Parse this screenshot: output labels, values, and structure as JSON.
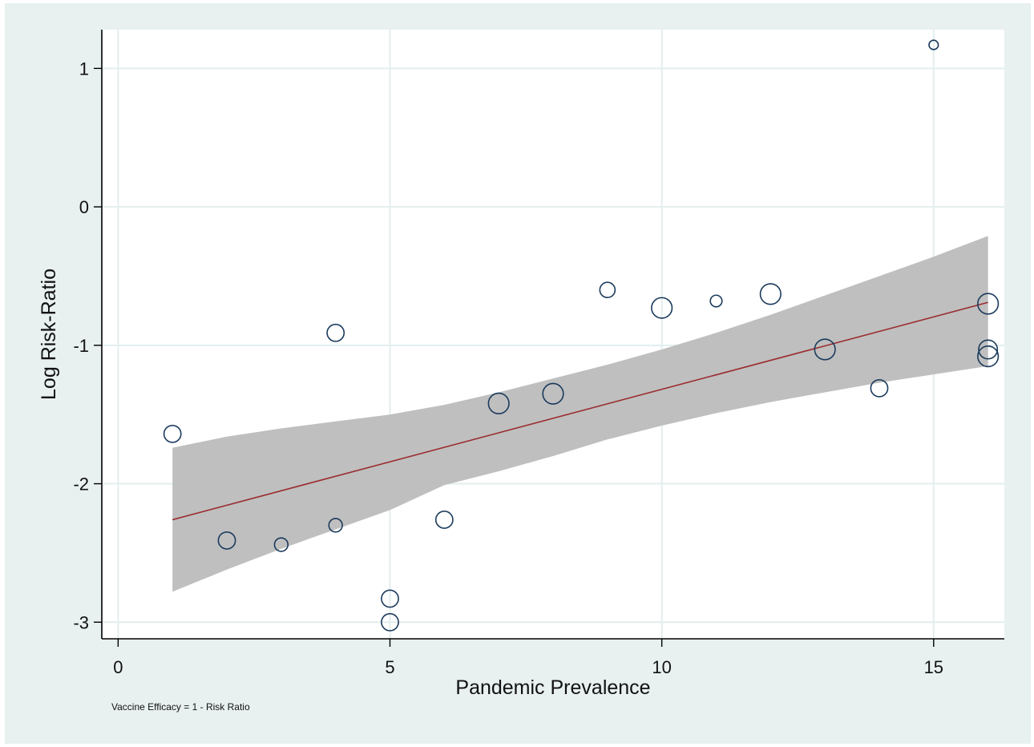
{
  "chart_data": {
    "type": "scatter",
    "title": "",
    "xlabel": "Pandemic Prevalence",
    "ylabel": "Log Risk-Ratio",
    "note": "Vaccine Efficacy = 1 - Risk Ratio",
    "xlim": [
      -0.3,
      16.3
    ],
    "ylim": [
      -3.12,
      1.28
    ],
    "x_ticks": [
      0,
      5,
      10,
      15
    ],
    "y_ticks": [
      1,
      0,
      -1,
      -2,
      -3
    ],
    "x_tick_labels": [
      "0",
      "5",
      "10",
      "15"
    ],
    "y_tick_labels": [
      "1",
      "0",
      "-1",
      "-2",
      "-3"
    ],
    "grid": true,
    "legend": "none",
    "colors": {
      "outer_background": "#e8f0f0",
      "plot_background": "#ffffff",
      "grid": "#e3eeee",
      "marker": "#1a3a5c",
      "fit_line": "#9b2d30",
      "confidence_band": "#bfbfbf"
    },
    "points": [
      {
        "x": 1,
        "y": -1.64,
        "weight": 3
      },
      {
        "x": 2,
        "y": -2.41,
        "weight": 3
      },
      {
        "x": 3,
        "y": -2.44,
        "weight": 2
      },
      {
        "x": 4,
        "y": -0.91,
        "weight": 3
      },
      {
        "x": 4,
        "y": -2.3,
        "weight": 2
      },
      {
        "x": 5,
        "y": -2.83,
        "weight": 3
      },
      {
        "x": 5,
        "y": -3.0,
        "weight": 3
      },
      {
        "x": 6,
        "y": -2.26,
        "weight": 3
      },
      {
        "x": 7,
        "y": -1.42,
        "weight": 4
      },
      {
        "x": 8,
        "y": -1.35,
        "weight": 4
      },
      {
        "x": 9,
        "y": -0.6,
        "weight": 2.5
      },
      {
        "x": 10,
        "y": -0.73,
        "weight": 4
      },
      {
        "x": 11,
        "y": -0.68,
        "weight": 1.5
      },
      {
        "x": 12,
        "y": -0.63,
        "weight": 4
      },
      {
        "x": 13,
        "y": -1.03,
        "weight": 4
      },
      {
        "x": 14,
        "y": -1.31,
        "weight": 3
      },
      {
        "x": 15,
        "y": 1.17,
        "weight": 0.8
      },
      {
        "x": 16,
        "y": -0.7,
        "weight": 4
      },
      {
        "x": 16,
        "y": -1.03,
        "weight": 3.5
      },
      {
        "x": 16,
        "y": -1.08,
        "weight": 4
      }
    ],
    "fit_line": {
      "x": [
        1,
        16
      ],
      "y": [
        -2.26,
        -0.69
      ]
    },
    "confidence_band": {
      "x": [
        1,
        2,
        3,
        4,
        5,
        6,
        7,
        8,
        9,
        10,
        11,
        12,
        13,
        14,
        15,
        16
      ],
      "upper": [
        -1.74,
        -1.66,
        -1.6,
        -1.55,
        -1.5,
        -1.43,
        -1.34,
        -1.24,
        -1.14,
        -1.03,
        -0.91,
        -0.78,
        -0.64,
        -0.5,
        -0.36,
        -0.21
      ],
      "lower": [
        -2.78,
        -2.62,
        -2.47,
        -2.33,
        -2.19,
        -2.01,
        -1.91,
        -1.8,
        -1.68,
        -1.58,
        -1.49,
        -1.41,
        -1.34,
        -1.27,
        -1.21,
        -1.15
      ]
    }
  }
}
